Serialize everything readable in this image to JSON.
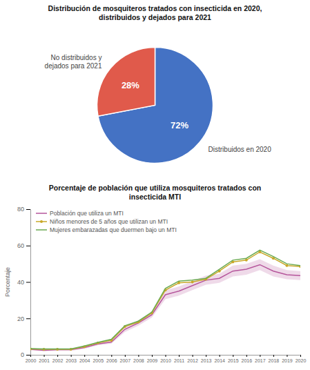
{
  "chart_data": [
    {
      "type": "pie",
      "title": "Distribución de mosquiteros tratados con insecticida en 2020,\ndistribuidos y dejados para 2021",
      "categories": [
        "Distribuidos en 2020",
        "No distribuidos y\ndejados para 2021"
      ],
      "values": [
        72,
        28
      ],
      "value_labels": [
        "72%",
        "28%"
      ],
      "colors": [
        "#4472c4",
        "#e05a4b"
      ],
      "data_labels": true
    },
    {
      "type": "line",
      "title": "Porcentaje de población que utiliza mosquiteros tratados con\ninsecticida  MTI",
      "y_label": "Porcentaje",
      "x": [
        2000,
        2001,
        2002,
        2003,
        2004,
        2005,
        2006,
        2007,
        2008,
        2009,
        2010,
        2011,
        2012,
        2013,
        2014,
        2015,
        2016,
        2017,
        2018,
        2019,
        2020
      ],
      "xlim": [
        2000,
        2020
      ],
      "xticks": [
        2000,
        2001,
        2002,
        2003,
        2004,
        2005,
        2006,
        2007,
        2008,
        2009,
        2010,
        2011,
        2012,
        2013,
        2014,
        2015,
        2016,
        2017,
        2018,
        2019,
        2020
      ],
      "ylim": [
        0,
        80
      ],
      "yticks": [
        0,
        20,
        40,
        60,
        80
      ],
      "grid": false,
      "legend": "upper-left",
      "series": [
        {
          "name": "Población que utiliza un MTI",
          "color": "#b5559b",
          "values": [
            3.0,
            2.5,
            2.8,
            2.8,
            4.0,
            6.0,
            7.0,
            14.0,
            17.5,
            22.0,
            33.0,
            35.0,
            38.0,
            41.0,
            42.0,
            46.0,
            47.0,
            49.5,
            46.0,
            44.0,
            43.5
          ],
          "lower": [
            2.5,
            2.0,
            2.2,
            2.2,
            3.3,
            5.2,
            6.2,
            12.5,
            16.0,
            20.5,
            30.5,
            32.5,
            35.5,
            38.5,
            39.5,
            43.0,
            44.0,
            46.5,
            43.0,
            41.5,
            41.0
          ],
          "upper": [
            3.5,
            3.0,
            3.4,
            3.4,
            4.7,
            6.8,
            7.8,
            15.5,
            19.0,
            23.5,
            35.5,
            37.5,
            40.5,
            43.5,
            44.5,
            49.0,
            50.0,
            52.5,
            49.0,
            46.5,
            46.0
          ]
        },
        {
          "name": "Niños menores de 5 años que utilizan un MTI",
          "color": "#c8a828",
          "marker": "circle",
          "values": [
            3.2,
            3.0,
            3.0,
            3.0,
            4.5,
            6.5,
            8.0,
            15.5,
            18.0,
            23.0,
            35.5,
            39.5,
            40.0,
            41.5,
            46.0,
            51.0,
            52.0,
            56.5,
            53.0,
            49.0,
            48.5
          ]
        },
        {
          "name": "Mujeres embarazadas que duermen bajo un MTI",
          "color": "#6aaa50",
          "values": [
            3.4,
            3.2,
            3.2,
            3.2,
            4.8,
            6.8,
            8.5,
            16.0,
            18.5,
            23.5,
            36.5,
            40.5,
            41.0,
            42.0,
            47.0,
            52.0,
            53.0,
            57.5,
            54.0,
            50.0,
            49.0
          ]
        }
      ]
    }
  ]
}
